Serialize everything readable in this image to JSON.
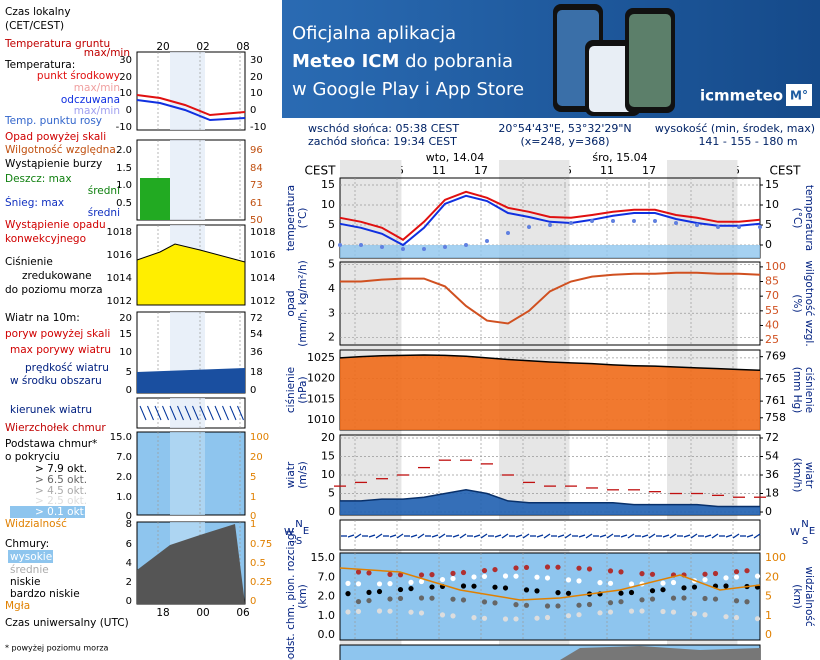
{
  "banner": {
    "line1": "Oficjalna aplikacja",
    "line2a": "Meteo ICM",
    "line2b": " do pobrania",
    "line3": "w Google Play i App Store",
    "brand": "icmmeteo",
    "badge": "M°"
  },
  "info": {
    "sunrise": "wschód słońca: 05:38 CEST",
    "sunset": "zachód słońca: 19:34 CEST",
    "coords": "20°54'43\"E, 53°32'29\"N",
    "grid": "(x=248, y=368)",
    "elev_label": "wysokość (min, środek, max)",
    "elev": "141 - 155 - 180 m"
  },
  "time_axis": {
    "zone": "CEST",
    "days": [
      "wto, 14.04",
      "śro, 15.04"
    ],
    "hours": [
      "23",
      "05",
      "11",
      "17",
      "23",
      "05",
      "11",
      "17",
      "23",
      "05"
    ]
  },
  "panels": [
    {
      "left_label": [
        "temperatura",
        "(°C)"
      ],
      "right_label": [
        "(°C)",
        "temperatura"
      ],
      "ylim": [
        -3.25,
        16.75
      ],
      "yticks": [
        0,
        5,
        10,
        15
      ],
      "y2lim": [
        -3.25,
        16.75
      ],
      "y2ticks": [
        0,
        5,
        10,
        15
      ],
      "series": [
        {
          "kind": "line",
          "color": "#e01010",
          "values": [
            6.8,
            5.8,
            4.3,
            1.3,
            5.8,
            11.3,
            13.3,
            11.8,
            9.3,
            8.3,
            7,
            6.8,
            7.5,
            8.3,
            8.8,
            8.8,
            7.5,
            6.8,
            5.8,
            5.8,
            6.3
          ]
        },
        {
          "kind": "line",
          "color": "#1030e0",
          "values": [
            5.3,
            4.3,
            2.8,
            0,
            4.3,
            10.3,
            12.3,
            11,
            8,
            7,
            5.8,
            5.5,
            6.3,
            7.3,
            8,
            8,
            6.5,
            5.5,
            4.8,
            4.8,
            5.3
          ]
        },
        {
          "kind": "dots",
          "color": "#6080e0",
          "values": [
            0,
            0,
            -0.5,
            -1,
            -1,
            -0.5,
            0,
            1,
            3,
            4.5,
            5,
            5.5,
            6,
            6,
            6,
            6,
            5.5,
            5,
            4.5,
            4.5,
            4.5
          ]
        }
      ]
    },
    {
      "left_label": [
        "opad",
        "(mm/h, kg/m²/h)"
      ],
      "right_label": [
        "(%)",
        "wilgotność wzgl."
      ],
      "ylim": [
        1.7,
        5.1
      ],
      "yticks": [
        2,
        3,
        4,
        5
      ],
      "y2lim": [
        20,
        105
      ],
      "y2ticks": [
        25,
        40,
        55,
        70,
        85,
        100
      ],
      "series": [
        {
          "kind": "line",
          "axis": "y2",
          "color": "#d05020",
          "values": [
            85,
            85,
            87,
            88,
            88,
            80,
            60,
            45,
            42,
            55,
            75,
            85,
            90,
            92,
            93,
            93,
            94,
            94,
            93,
            93,
            92
          ]
        }
      ]
    },
    {
      "left_label": [
        "ciśnienie",
        "(hPa)"
      ],
      "right_label": [
        "(mm Hg)",
        "ciśnienie"
      ],
      "ylim": [
        1007.6,
        1026.9
      ],
      "yticks": [
        1010,
        1015,
        1020,
        1025
      ],
      "y2lim": [
        755.8,
        770.2
      ],
      "y2ticks": [
        758,
        761,
        765,
        769
      ],
      "series": [
        {
          "kind": "area",
          "color": "#f06a18",
          "values": [
            1025,
            1025.3,
            1025.5,
            1025.6,
            1025.7,
            1025.6,
            1025.4,
            1025,
            1024.6,
            1024.3,
            1024,
            1023.8,
            1023.6,
            1023.3,
            1023.1,
            1023,
            1022.8,
            1022.6,
            1022.4,
            1022.2,
            1022
          ]
        }
      ]
    },
    {
      "left_label": [
        "wiatr",
        "(m/s)"
      ],
      "right_label": [
        "(km/h)",
        "wiatr"
      ],
      "ylim": [
        -0.8,
        20.8
      ],
      "yticks": [
        0,
        5,
        10,
        15,
        20
      ],
      "y2lim": [
        -2.9,
        74.9
      ],
      "y2ticks": [
        0,
        18,
        36,
        54,
        72
      ],
      "series": [
        {
          "kind": "area",
          "color": "#1f5fb0",
          "values": [
            3,
            3,
            3.5,
            3.5,
            4,
            5,
            6,
            5,
            3,
            2.5,
            2.5,
            2.5,
            2.5,
            2.5,
            2,
            2,
            2,
            2,
            1.5,
            1.5,
            1.5
          ]
        },
        {
          "kind": "dashes",
          "color": "#c01010",
          "values": [
            7,
            8,
            9,
            10,
            12,
            14,
            14,
            13,
            10,
            8,
            7,
            7,
            6.5,
            6,
            6,
            5.5,
            5,
            5,
            4.5,
            4,
            4
          ]
        }
      ]
    },
    {
      "compass": [
        "N",
        "E",
        "S",
        "W"
      ]
    },
    {
      "left_label": [
        "podst. chm. pion. rozciągł.",
        "(km)"
      ],
      "right_label": [
        "(km)",
        "widzialność"
      ],
      "ytick_labels": [
        "15.0",
        "7.0",
        "2.0",
        "1.0",
        "0.0"
      ],
      "y2tick_labels": [
        "100",
        "20",
        "5",
        "1",
        "0"
      ]
    }
  ],
  "legend": {
    "local_time": [
      "Czas lokalny",
      "(CET/CEST)"
    ],
    "top_hours": [
      "20",
      "02",
      "08"
    ],
    "temp": {
      "labels": [
        "Temperatura gruntu",
        "max/min",
        "Temperatura:",
        "punkt środkowy",
        "max/min",
        "odczuwana",
        "max/min",
        "Temp. punktu rosy"
      ],
      "ticks": [
        "30",
        "20",
        "10",
        "0",
        "-10"
      ]
    },
    "precip": {
      "labels": [
        "Opad powyżej skali",
        "Wilgotność względna",
        "Wystąpienie burzy",
        "Deszcz: max",
        "średni",
        "Śnieg: max",
        "średni",
        "Wystąpienie opadu",
        "konwekcyjnego"
      ],
      "ticks": [
        "2.0",
        "1.5",
        "1.0",
        "0.5"
      ],
      "ticks2": [
        "96",
        "84",
        "73",
        "61",
        "50"
      ]
    },
    "pressure": {
      "labels": [
        "Ciśnienie",
        "zredukowane",
        "do poziomu morza"
      ],
      "ticks": [
        "1018",
        "1016",
        "1014",
        "1012"
      ]
    },
    "wind": {
      "labels": [
        "Wiatr na 10m:",
        "poryw powyżej skali",
        "max porywy wiatru",
        "prędkość wiatru",
        "w środku obszaru"
      ],
      "ticks": [
        "20",
        "15",
        "10",
        "5",
        "0"
      ],
      "ticks2": [
        "72",
        "54",
        "36",
        "18",
        "0"
      ]
    },
    "direction": "kierunek wiatru",
    "cloud": {
      "labels": [
        "Wierzchołek chmur",
        "Podstawa chmur*",
        "o pokryciu",
        "> 7.9 okt.",
        "> 6.5 okt.",
        "> 4.5 okt.",
        "> 2.5 okt.",
        "> 0.1 okt.",
        "Widzialność"
      ],
      "ticks": [
        "15.0",
        "7.0",
        "2.0",
        "1.0",
        "0"
      ],
      "ticks2": [
        "100",
        "20",
        "5",
        "1",
        "0"
      ]
    },
    "cover": {
      "labels": [
        "Chmury:",
        "wysokie",
        "średnie",
        "niskie",
        "bardzo niskie",
        "Mgła"
      ],
      "ticks": [
        "8",
        "6",
        "4",
        "2",
        "0"
      ],
      "ticks2": [
        "1",
        "0.75",
        "0.5",
        "0.25",
        "0"
      ]
    },
    "utc_hours": [
      "18",
      "00",
      "06"
    ],
    "utc": "Czas uniwersalny (UTC)",
    "footnote": "* powyżej poziomu morza"
  }
}
